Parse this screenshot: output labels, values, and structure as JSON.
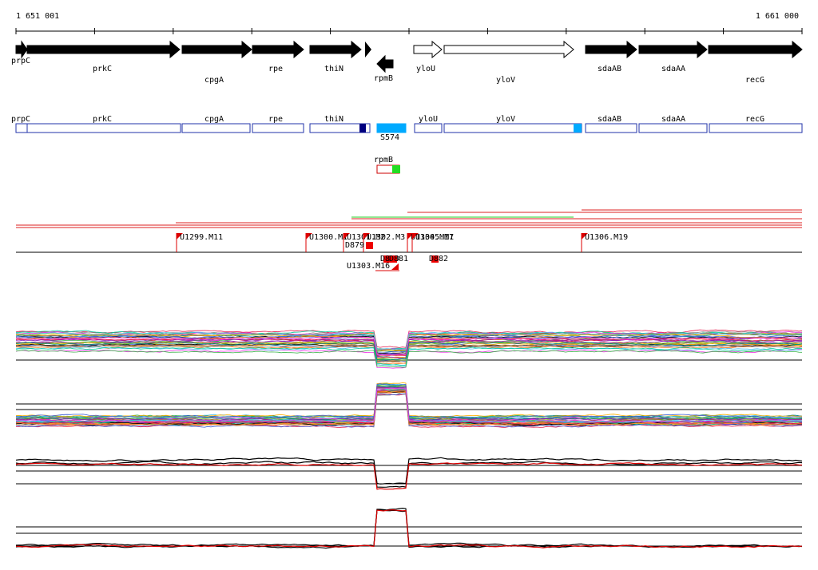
{
  "ruler": {
    "start": "1 651 001",
    "end": "1 661 000"
  },
  "genes": [
    "prpC",
    "prkC",
    "cpgA",
    "rpe",
    "thiN",
    "rpmB",
    "yloU",
    "yloV",
    "sdaAB",
    "sdaAA",
    "recG"
  ],
  "annotations": [
    "prpC",
    "prkC",
    "cpgA",
    "rpe",
    "thiN",
    "S574",
    "yloU",
    "yloV",
    "sdaAB",
    "sdaAA",
    "recG",
    "rpmB"
  ],
  "markers": [
    "U1299.M11",
    "U1300.M1",
    "U1301.M2",
    "U1302.M3",
    "U1304.M17",
    "U1305.M1",
    "U1306.M19",
    "U1303.M16"
  ],
  "probes": [
    "D879",
    "D880",
    "D881",
    "D882"
  ]
}
